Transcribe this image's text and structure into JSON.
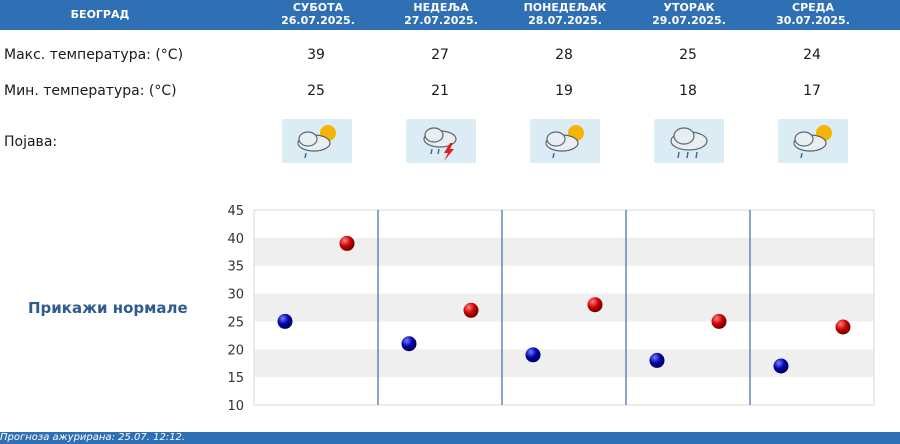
{
  "header": {
    "city": "БЕОГРАД",
    "days": [
      {
        "weekday": "СУБОТА",
        "date": "26.07.2025."
      },
      {
        "weekday": "НЕДЕЉА",
        "date": "27.07.2025."
      },
      {
        "weekday": "ПОНЕДЕЉАК",
        "date": "28.07.2025."
      },
      {
        "weekday": "УТОРАК",
        "date": "29.07.2025."
      },
      {
        "weekday": "СРЕДА",
        "date": "30.07.2025."
      }
    ]
  },
  "rows": {
    "max_label": "Макс. температура: (°C)",
    "min_label": "Мин. температура: (°C)",
    "phenomenon_label": "Појава:"
  },
  "max_temps": [
    "39",
    "27",
    "28",
    "25",
    "24"
  ],
  "min_temps": [
    "25",
    "21",
    "19",
    "18",
    "17"
  ],
  "icons": [
    "partly-cloudy-rain-icon",
    "thunderstorm-icon",
    "partly-cloudy-rain-icon",
    "cloud-rain-icon",
    "partly-cloudy-rain-icon"
  ],
  "normals_link": "Прикажи нормале",
  "footer": {
    "updated": "Прогноза ажурирана:  25.07. 12:12."
  },
  "colors": {
    "header_bg": "#2f6fb3",
    "max_point": "#cc0000",
    "min_point": "#0000aa",
    "link": "#2f5b8f"
  },
  "chart_data": {
    "type": "scatter",
    "categories": [
      "26.07.2025.",
      "27.07.2025.",
      "28.07.2025.",
      "29.07.2025.",
      "30.07.2025."
    ],
    "series": [
      {
        "values": [
          25,
          21,
          19,
          18,
          17
        ]
      },
      {
        "values": [
          39,
          27,
          28,
          25,
          24
        ]
      }
    ],
    "ylim": [
      10,
      45
    ],
    "yticks": [
      "10",
      "15",
      "20",
      "25",
      "30",
      "35",
      "40",
      "45"
    ],
    "grid": true
  }
}
